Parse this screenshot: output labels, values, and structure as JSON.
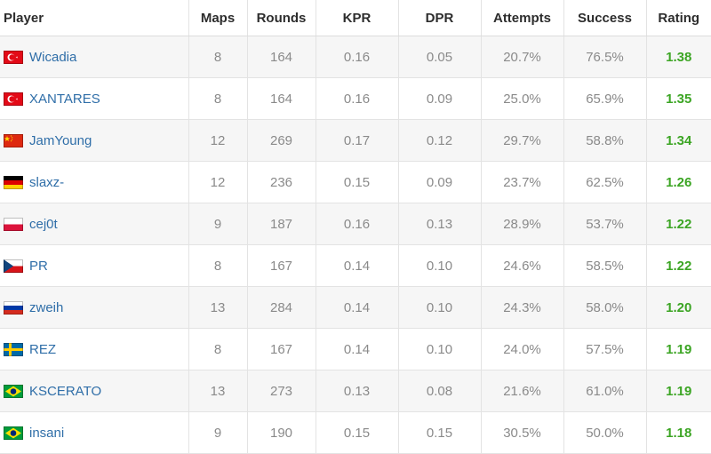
{
  "headers": [
    "Player",
    "Maps",
    "Rounds",
    "KPR",
    "DPR",
    "Attempts",
    "Success",
    "Rating"
  ],
  "flags": {
    "turkey": {
      "colors": [
        "#e30a17",
        "#ffffff"
      ]
    },
    "china": {
      "colors": [
        "#de2910",
        "#ffde00"
      ]
    },
    "germany": {
      "colors": [
        "#000000",
        "#dd0000",
        "#ffce00"
      ]
    },
    "poland": {
      "colors": [
        "#ffffff",
        "#dc143c"
      ]
    },
    "czechia": {
      "colors": [
        "#ffffff",
        "#d7141a",
        "#11457e"
      ]
    },
    "russia": {
      "colors": [
        "#ffffff",
        "#0039a6",
        "#d52b1e"
      ]
    },
    "sweden": {
      "colors": [
        "#006aa7",
        "#fecc00"
      ]
    },
    "brazil": {
      "colors": [
        "#009c3b",
        "#ffdf00",
        "#002776"
      ]
    }
  },
  "rows": [
    {
      "flag": "turkey",
      "player": "Wicadia",
      "maps": "8",
      "rounds": "164",
      "kpr": "0.16",
      "dpr": "0.05",
      "attempts": "20.7%",
      "success": "76.5%",
      "rating": "1.38"
    },
    {
      "flag": "turkey",
      "player": "XANTARES",
      "maps": "8",
      "rounds": "164",
      "kpr": "0.16",
      "dpr": "0.09",
      "attempts": "25.0%",
      "success": "65.9%",
      "rating": "1.35"
    },
    {
      "flag": "china",
      "player": "JamYoung",
      "maps": "12",
      "rounds": "269",
      "kpr": "0.17",
      "dpr": "0.12",
      "attempts": "29.7%",
      "success": "58.8%",
      "rating": "1.34"
    },
    {
      "flag": "germany",
      "player": "slaxz-",
      "maps": "12",
      "rounds": "236",
      "kpr": "0.15",
      "dpr": "0.09",
      "attempts": "23.7%",
      "success": "62.5%",
      "rating": "1.26"
    },
    {
      "flag": "poland",
      "player": "cej0t",
      "maps": "9",
      "rounds": "187",
      "kpr": "0.16",
      "dpr": "0.13",
      "attempts": "28.9%",
      "success": "53.7%",
      "rating": "1.22"
    },
    {
      "flag": "czechia",
      "player": "PR",
      "maps": "8",
      "rounds": "167",
      "kpr": "0.14",
      "dpr": "0.10",
      "attempts": "24.6%",
      "success": "58.5%",
      "rating": "1.22"
    },
    {
      "flag": "russia",
      "player": "zweih",
      "maps": "13",
      "rounds": "284",
      "kpr": "0.14",
      "dpr": "0.10",
      "attempts": "24.3%",
      "success": "58.0%",
      "rating": "1.20"
    },
    {
      "flag": "sweden",
      "player": "REZ",
      "maps": "8",
      "rounds": "167",
      "kpr": "0.14",
      "dpr": "0.10",
      "attempts": "24.0%",
      "success": "57.5%",
      "rating": "1.19"
    },
    {
      "flag": "brazil",
      "player": "KSCERATO",
      "maps": "13",
      "rounds": "273",
      "kpr": "0.13",
      "dpr": "0.08",
      "attempts": "21.6%",
      "success": "61.0%",
      "rating": "1.19"
    },
    {
      "flag": "brazil",
      "player": "insani",
      "maps": "9",
      "rounds": "190",
      "kpr": "0.15",
      "dpr": "0.15",
      "attempts": "30.5%",
      "success": "50.0%",
      "rating": "1.18"
    }
  ]
}
